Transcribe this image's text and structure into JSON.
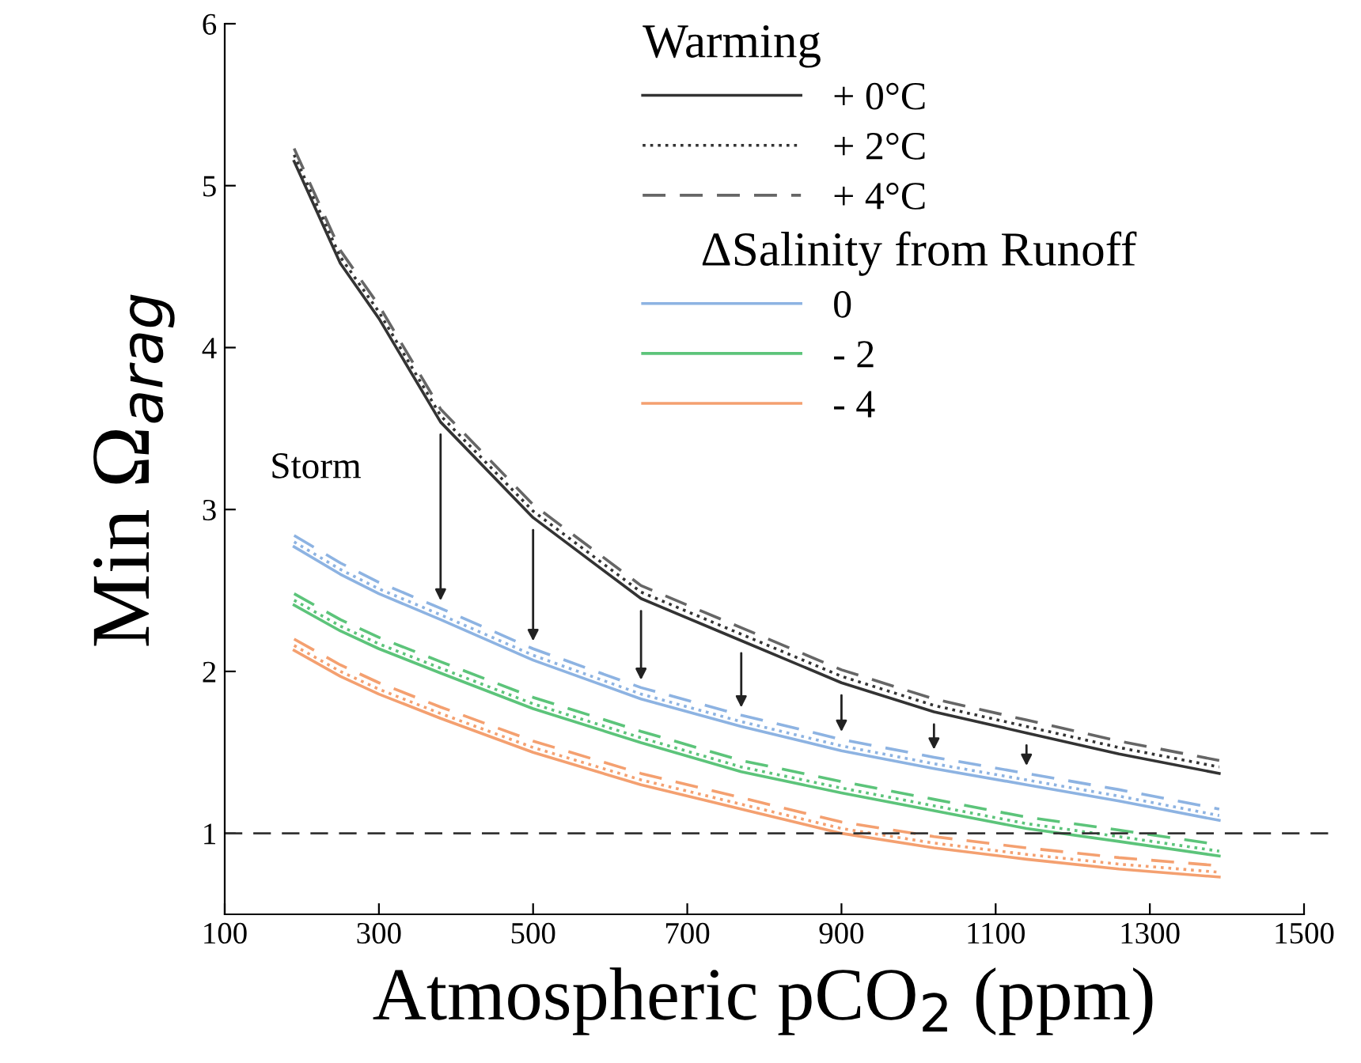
{
  "chart_data": {
    "type": "line",
    "xlabel": "Atmospheric pCO$_{2}$ (ppm)",
    "ylabel": "Min Ω$_{arag}$",
    "legend_title": "Warming",
    "legend": "top right",
    "grid": false,
    "marker": "none",
    "x": [
      190,
      250,
      300,
      380,
      500,
      640,
      770,
      900,
      1020,
      1140,
      1260,
      1390
    ],
    "xlim": [
      100,
      1500
    ],
    "xticks": [
      100,
      300,
      500,
      700,
      900,
      1100,
      1300,
      1500
    ],
    "ylim": [
      0.5,
      6
    ],
    "yticks": [
      1,
      2,
      3,
      4,
      5,
      6
    ],
    "series": [
      {
        "name": "+ 0°C",
        "color": "#333333",
        "line_style": "solid",
        "values": [
          5.15,
          4.52,
          4.18,
          3.54,
          2.95,
          2.45,
          2.19,
          1.93,
          1.75,
          1.62,
          1.49,
          1.37
        ]
      },
      {
        "name": "+ 2°C",
        "color": "#333333",
        "line_style": "dotted",
        "values": [
          5.19,
          4.56,
          4.22,
          3.58,
          2.99,
          2.49,
          2.23,
          1.97,
          1.79,
          1.66,
          1.53,
          1.41
        ]
      },
      {
        "name": "+ 4°C",
        "color": "#666666",
        "line_style": "dashed",
        "values": [
          5.23,
          4.6,
          4.26,
          3.62,
          3.03,
          2.53,
          2.27,
          2.01,
          1.83,
          1.7,
          1.57,
          1.45
        ]
      },
      {
        "name": "0",
        "color": "#8db3e2",
        "line_style": "solid",
        "values": [
          2.77,
          2.6,
          2.48,
          2.32,
          2.07,
          1.83,
          1.66,
          1.51,
          1.4,
          1.3,
          1.2,
          1.08
        ]
      },
      {
        "color": "#8db3e2",
        "line_style": "dotted",
        "values": [
          2.8,
          2.63,
          2.51,
          2.35,
          2.1,
          1.86,
          1.69,
          1.54,
          1.43,
          1.33,
          1.23,
          1.11
        ]
      },
      {
        "color": "#8db3e2",
        "line_style": "dashed",
        "values": [
          2.84,
          2.67,
          2.55,
          2.39,
          2.14,
          1.9,
          1.73,
          1.58,
          1.47,
          1.37,
          1.27,
          1.15
        ]
      },
      {
        "name": "- 2",
        "color": "#5cc47a",
        "line_style": "solid",
        "values": [
          2.41,
          2.25,
          2.14,
          1.99,
          1.77,
          1.56,
          1.38,
          1.25,
          1.14,
          1.03,
          0.95,
          0.86
        ]
      },
      {
        "color": "#5cc47a",
        "line_style": "dotted",
        "values": [
          2.44,
          2.28,
          2.17,
          2.02,
          1.8,
          1.59,
          1.41,
          1.28,
          1.17,
          1.06,
          0.98,
          0.89
        ]
      },
      {
        "color": "#5cc47a",
        "line_style": "dashed",
        "values": [
          2.48,
          2.32,
          2.21,
          2.06,
          1.84,
          1.63,
          1.45,
          1.32,
          1.21,
          1.1,
          1.02,
          0.93
        ]
      },
      {
        "name": "- 4",
        "color": "#f4a070",
        "line_style": "solid",
        "values": [
          2.13,
          1.97,
          1.86,
          1.71,
          1.5,
          1.3,
          1.15,
          1.0,
          0.91,
          0.84,
          0.78,
          0.73
        ]
      },
      {
        "color": "#f4a070",
        "line_style": "dotted",
        "values": [
          2.16,
          2.0,
          1.89,
          1.74,
          1.53,
          1.33,
          1.18,
          1.03,
          0.94,
          0.87,
          0.81,
          0.76
        ]
      },
      {
        "color": "#f4a070",
        "line_style": "dashed",
        "values": [
          2.2,
          2.04,
          1.93,
          1.78,
          1.57,
          1.37,
          1.22,
          1.07,
          0.98,
          0.91,
          0.85,
          0.8
        ]
      }
    ],
    "ref_lines": [
      {
        "axis": "y",
        "value": 1,
        "color": "#333333",
        "line_style": "dashed"
      }
    ],
    "annotations": [
      "Storm",
      "ΔSalinity from Runoff"
    ]
  }
}
